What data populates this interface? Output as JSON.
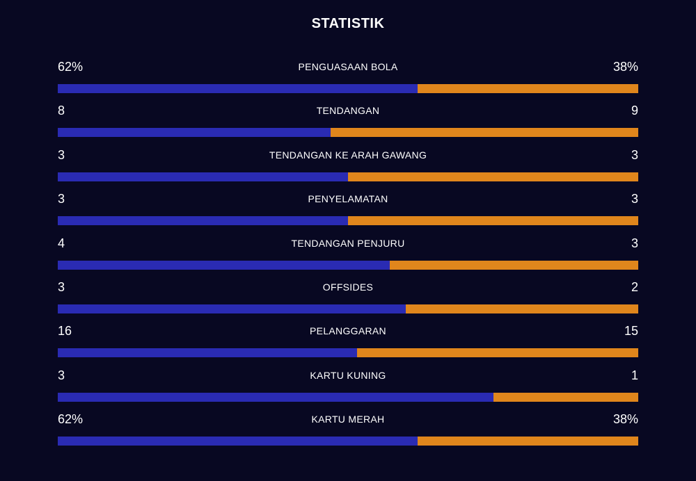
{
  "title": "STATISTIK",
  "colors": {
    "background": "#080822",
    "home": "#2a2bb3",
    "away": "#e0861c",
    "text": "#ffffff"
  },
  "stats": [
    {
      "label": "PENGUASAAN BOLA",
      "left": "62%",
      "right": "38%",
      "home_share": 0.62
    },
    {
      "label": "TENDANGAN",
      "left": "8",
      "right": "9",
      "home_share": 0.4706
    },
    {
      "label": "TENDANGAN KE ARAH GAWANG",
      "left": "3",
      "right": "3",
      "home_share": 0.5
    },
    {
      "label": "PENYELAMATAN",
      "left": "3",
      "right": "3",
      "home_share": 0.5
    },
    {
      "label": "TENDANGAN PENJURU",
      "left": "4",
      "right": "3",
      "home_share": 0.5714
    },
    {
      "label": "OFFSIDES",
      "left": "3",
      "right": "2",
      "home_share": 0.6
    },
    {
      "label": "PELANGGARAN",
      "left": "16",
      "right": "15",
      "home_share": 0.5161
    },
    {
      "label": "KARTU KUNING",
      "left": "3",
      "right": "1",
      "home_share": 0.75
    },
    {
      "label": "KARTU MERAH",
      "left": "62%",
      "right": "38%",
      "home_share": 0.62
    }
  ]
}
